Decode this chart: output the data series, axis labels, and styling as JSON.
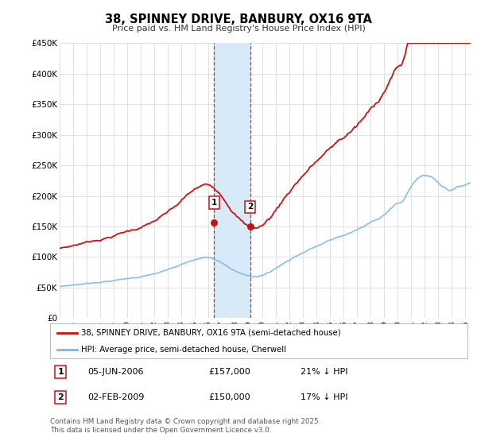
{
  "title": "38, SPINNEY DRIVE, BANBURY, OX16 9TA",
  "subtitle": "Price paid vs. HM Land Registry's House Price Index (HPI)",
  "ylabel_ticks": [
    "£0",
    "£50K",
    "£100K",
    "£150K",
    "£200K",
    "£250K",
    "£300K",
    "£350K",
    "£400K",
    "£450K"
  ],
  "ylim": [
    0,
    450000
  ],
  "xlim_start": 1995.0,
  "xlim_end": 2025.5,
  "hpi_color": "#7ab8e8",
  "price_color": "#cc1111",
  "purchase1_date": 2006.43,
  "purchase1_price": 157000,
  "purchase2_date": 2009.09,
  "purchase2_price": 150000,
  "vspan_color": "#d8eaf8",
  "legend_label1": "38, SPINNEY DRIVE, BANBURY, OX16 9TA (semi-detached house)",
  "legend_label2": "HPI: Average price, semi-detached house, Cherwell",
  "annotation1_label": "1",
  "annotation1_date": "05-JUN-2006",
  "annotation1_price": "£157,000",
  "annotation1_hpi": "21% ↓ HPI",
  "annotation2_label": "2",
  "annotation2_date": "02-FEB-2009",
  "annotation2_price": "£150,000",
  "annotation2_hpi": "17% ↓ HPI",
  "footer": "Contains HM Land Registry data © Crown copyright and database right 2025.\nThis data is licensed under the Open Government Licence v3.0.",
  "background_color": "#ffffff",
  "plot_bg_color": "#ffffff",
  "grid_color": "#e0e0e0"
}
